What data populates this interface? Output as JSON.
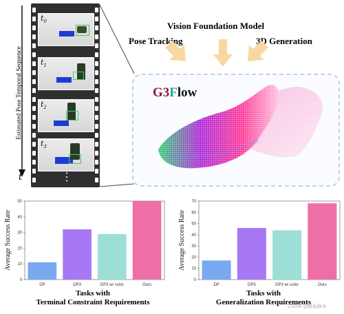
{
  "film": {
    "axis_label": "Estimated Pose Temporal Sequence",
    "t_label": "t",
    "frames": [
      {
        "label": "t",
        "sub": "0"
      },
      {
        "label": "t",
        "sub": "1"
      },
      {
        "label": "t",
        "sub": "2"
      },
      {
        "label": "t",
        "sub": "3"
      }
    ],
    "ellipsis": "⋮"
  },
  "pipeline": {
    "title": "Vision Foundation Model",
    "left_branch": "Pose Tracking",
    "right_branch": "3D Generation",
    "brand": {
      "part1": "G",
      "part2": "3",
      "part3": "F",
      "part4": "low"
    }
  },
  "colors": {
    "arrow": "#f7d8a1",
    "bar_dp": "#79a9f2",
    "bar_dp3": "#a678f5",
    "bar_dp3_color": "#9ddfd6",
    "bar_ours": "#ee6ea8",
    "brand_g3": "#8a1c3a",
    "brand_f": "#21a88f"
  },
  "watermark": "CSDN @硅谷秋水",
  "chart_data": [
    {
      "type": "bar",
      "categories": [
        "DP",
        "DP3",
        "DP3 w/ color",
        "Ours"
      ],
      "values": [
        11,
        32,
        29,
        50
      ],
      "ylim": [
        0,
        50
      ],
      "yticks": [
        "0",
        "10",
        "20",
        "30",
        "40",
        "50"
      ],
      "ylabel": "Average Success Rate",
      "title_line1": "Tasks with",
      "title_line2": "Terminal Constraint Requirements"
    },
    {
      "type": "bar",
      "categories": [
        "DP",
        "DP3",
        "DP3 w/ color",
        "Ours"
      ],
      "values": [
        17,
        46,
        44,
        68
      ],
      "ylim": [
        0,
        70
      ],
      "yticks": [
        "0",
        "10",
        "20",
        "30",
        "40",
        "50",
        "60",
        "70"
      ],
      "ylabel": "Average Success Rate",
      "title_line1": "Tasks with",
      "title_line2": "Generalization Requirements"
    }
  ]
}
